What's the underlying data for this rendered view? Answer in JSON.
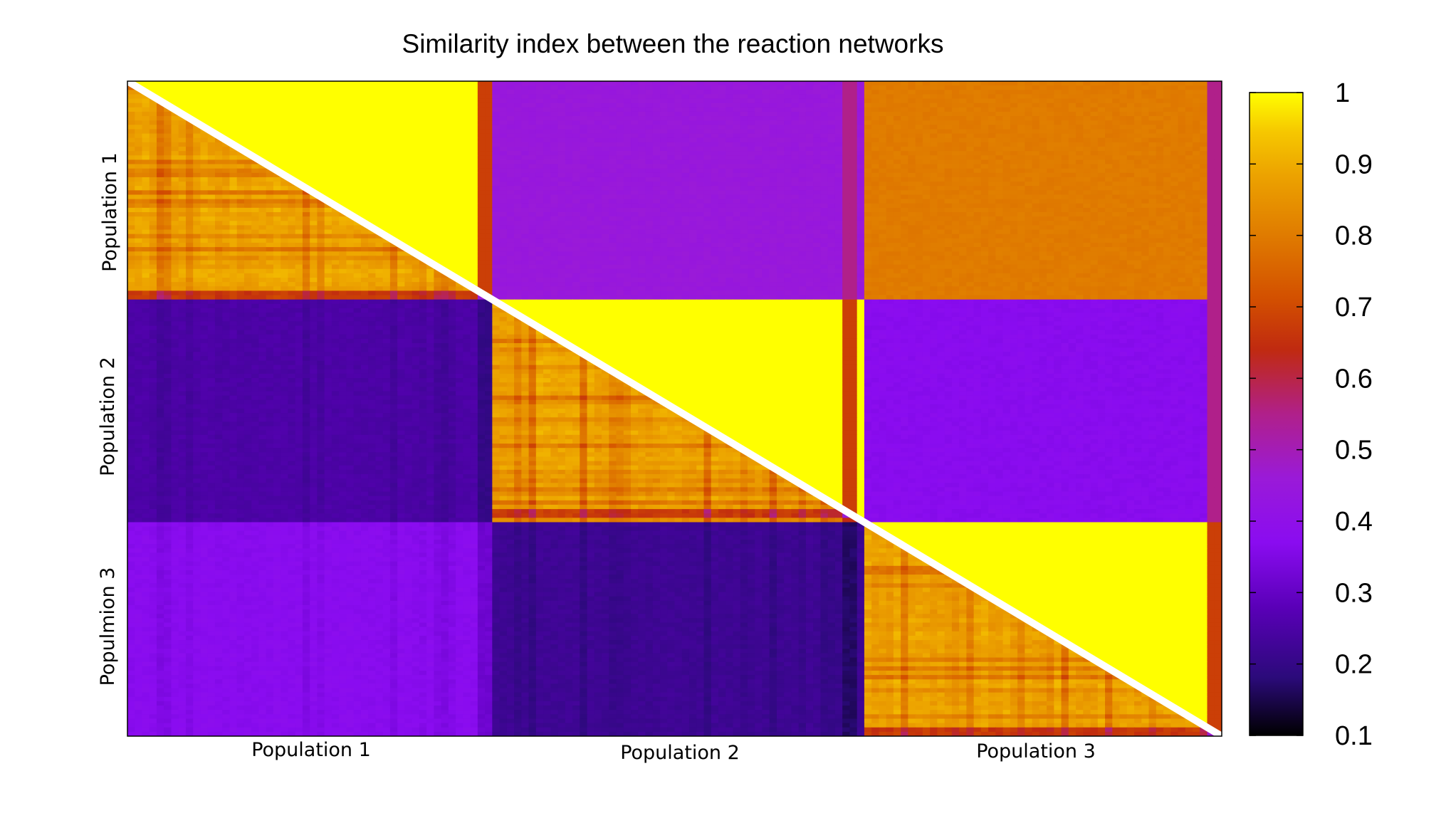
{
  "chart_data": {
    "type": "heatmap",
    "title": "Similarity index between the reaction networks",
    "x_labels": [
      "Population 1",
      "Population 2",
      "Population 3"
    ],
    "y_labels": [
      "Population 1",
      "Population 2",
      "Populmion 3"
    ],
    "colorbar": {
      "min": 0.1,
      "max": 1,
      "ticks": [
        "1",
        "0.9",
        "0.8",
        "0.7",
        "0.6",
        "0.5",
        "0.4",
        "0.3",
        "0.2",
        "0.1"
      ],
      "palette": [
        "#000000",
        "#2b0a7a",
        "#5a00b8",
        "#8a0cf0",
        "#9a1ad8",
        "#b0208a",
        "#c02a10",
        "#d35000",
        "#e07c00",
        "#eca200",
        "#f6c800",
        "#ffff00"
      ]
    },
    "block_values": [
      [
        1.0,
        0.45,
        0.8
      ],
      [
        0.25,
        1.0,
        0.37
      ],
      [
        0.37,
        0.22,
        1.0
      ]
    ],
    "diagonal_lower_mean": 0.88
  }
}
